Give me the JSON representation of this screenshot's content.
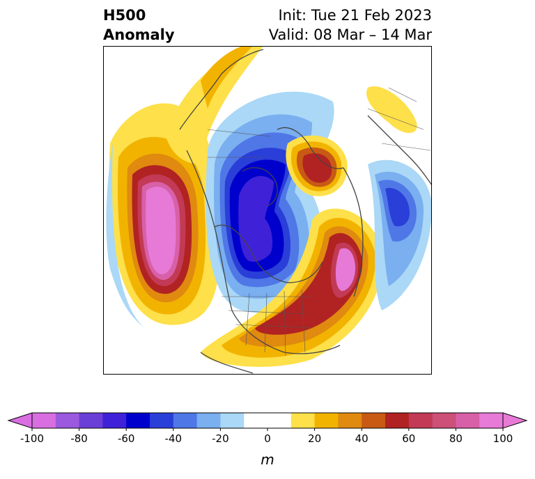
{
  "title": {
    "left_line1": "H500",
    "left_line2": "Anomaly",
    "init": "Init: Tue 21 Feb 2023",
    "valid": "Valid: 08 Mar – 14 Mar"
  },
  "colorbar": {
    "unit": "m",
    "min": -100,
    "max": 100,
    "step": 10,
    "tick_labels": [
      "-100",
      "-80",
      "-60",
      "-40",
      "-20",
      "0",
      "20",
      "40",
      "60",
      "80",
      "100"
    ],
    "colors": [
      "#d96ee0",
      "#9b59e0",
      "#6a3fd8",
      "#3f22d8",
      "#0000cc",
      "#2a3ed8",
      "#4f77e6",
      "#7aaff0",
      "#aad8f6",
      "#ffffff",
      "#ffffff",
      "#fde04a",
      "#f2b300",
      "#e08a10",
      "#c85a14",
      "#b12222",
      "#c23a55",
      "#cc5078",
      "#d860a8",
      "#e77ad6"
    ],
    "extend": "both"
  },
  "map": {
    "projection": "north-polar-stereographic",
    "features": [
      "coastlines",
      "country-borders",
      "state-province-borders",
      "H500-anomaly-contours"
    ]
  }
}
